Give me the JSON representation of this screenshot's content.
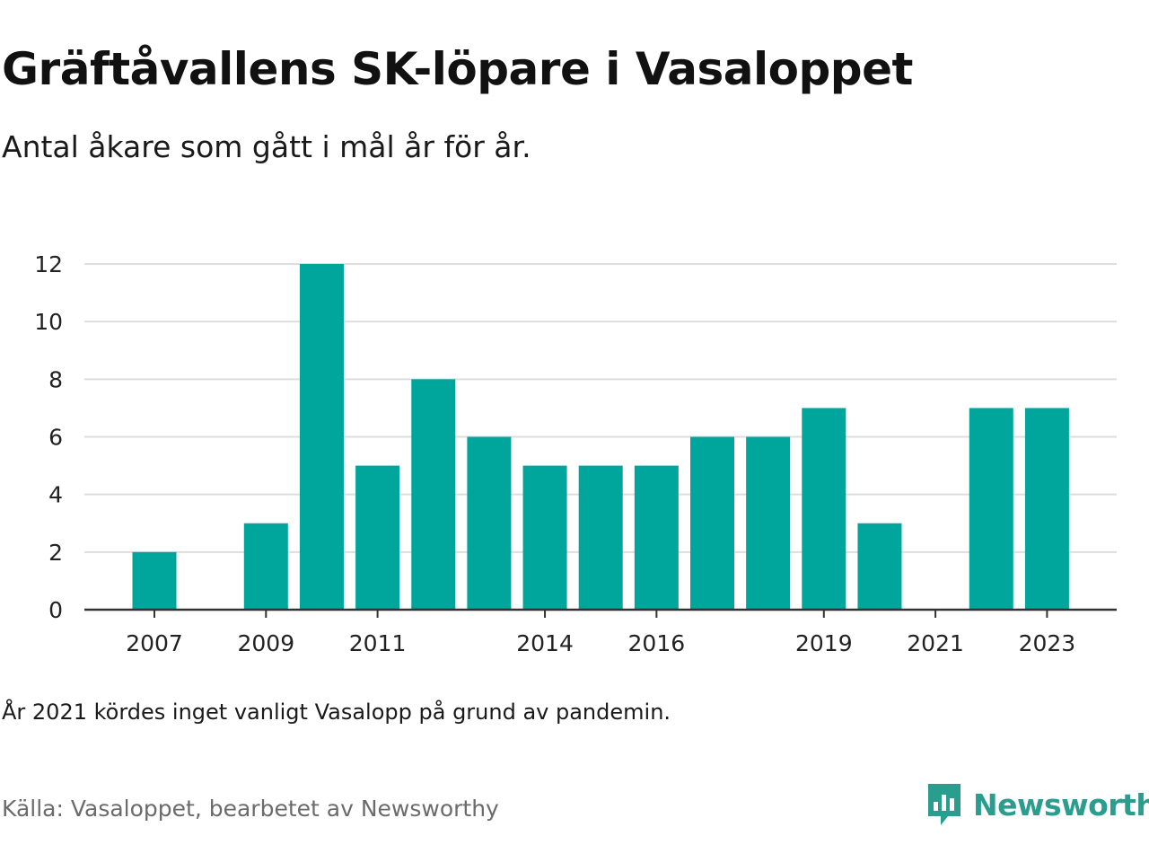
{
  "header": {
    "title": "Gräftåvallens SK-löpare i Vasaloppet",
    "subtitle": "Antal åkare som gått i mål år för år."
  },
  "footer": {
    "note": "År 2021 kördes inget vanligt Vasalopp på grund av pandemin.",
    "source": "Källa: Vasaloppet, bearbetet av Newsworthy",
    "brand": "Newsworthy"
  },
  "colors": {
    "bar": "#00a59b",
    "brand": "#2a9d8f",
    "grid": "#dddddd",
    "axis": "#333333"
  },
  "icons": {
    "brand_logo": "bar-chart-speech-bubble-icon"
  },
  "chart_data": {
    "type": "bar",
    "title": "Gräftåvallens SK-löpare i Vasaloppet",
    "subtitle": "Antal åkare som gått i mål år för år.",
    "categories": [
      "2007",
      "2008",
      "2009",
      "2010",
      "2011",
      "2012",
      "2013",
      "2014",
      "2015",
      "2016",
      "2017",
      "2018",
      "2019",
      "2020",
      "2021",
      "2022",
      "2023"
    ],
    "values": [
      2,
      0,
      3,
      12,
      5,
      8,
      6,
      5,
      5,
      5,
      6,
      6,
      7,
      3,
      0,
      7,
      7
    ],
    "xticks": [
      "2007",
      "2009",
      "2011",
      "2014",
      "2016",
      "2019",
      "2021",
      "2023"
    ],
    "yticks": [
      0,
      2,
      4,
      6,
      8,
      10,
      12
    ],
    "ylim": [
      0,
      12
    ],
    "xlabel": "",
    "ylabel": "",
    "grid": true,
    "legend": "none"
  }
}
